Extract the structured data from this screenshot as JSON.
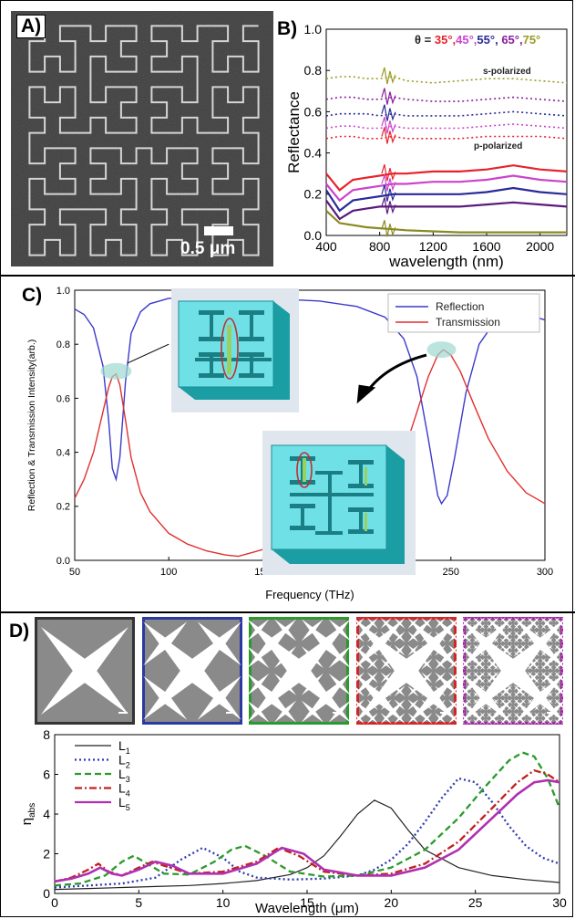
{
  "figure": {
    "panel_a": {
      "label": "A)",
      "scale_bar": "0.5 μm"
    },
    "panel_b": {
      "label": "B)",
      "theta_prefix": "θ =",
      "angles": [
        {
          "text": "35°,",
          "color": "#e8222c"
        },
        {
          "text": "45°,",
          "color": "#cc44cc"
        },
        {
          "text": "55°,",
          "color": "#2a2a99"
        },
        {
          "text": " 65°,",
          "color": "#8a1f9a"
        },
        {
          "text": "75°",
          "color": "#9a9a22"
        }
      ],
      "annotation_s": "s-polarized",
      "annotation_p": "p-polarized"
    },
    "panel_c": {
      "label": "C)"
    },
    "panel_d": {
      "label": "D)",
      "fractal_frame_colors": [
        "#333333",
        "#2a3aa0",
        "#2a9a2a",
        "#d02828",
        "#a028a0"
      ]
    }
  },
  "chart_data": [
    {
      "id": "B",
      "type": "line",
      "title": "",
      "xlabel": "wavelength (nm)",
      "ylabel": "Reflectance",
      "xlim": [
        400,
        2200
      ],
      "ylim": [
        0.0,
        1.0
      ],
      "xticks": [
        "400",
        "800",
        "1200",
        "1600",
        "2000"
      ],
      "xtick_values": [
        400,
        800,
        1200,
        1600,
        2000
      ],
      "yticks": [
        "0.0",
        "0.2",
        "0.4",
        "0.6",
        "0.8",
        "1.0"
      ],
      "ytick_values": [
        0.0,
        0.2,
        0.4,
        0.6,
        0.8,
        1.0
      ],
      "x": [
        400,
        500,
        600,
        700,
        800,
        900,
        1000,
        1200,
        1400,
        1600,
        1800,
        2000,
        2200
      ],
      "series": [
        {
          "polarization": "s",
          "angle": "75",
          "color": "#9a9a22",
          "values": [
            0.76,
            0.77,
            0.77,
            0.76,
            0.76,
            0.77,
            0.75,
            0.74,
            0.75,
            0.76,
            0.76,
            0.75,
            0.74
          ]
        },
        {
          "polarization": "s",
          "angle": "65",
          "color": "#8a1f9a",
          "values": [
            0.66,
            0.67,
            0.67,
            0.66,
            0.66,
            0.67,
            0.66,
            0.65,
            0.65,
            0.66,
            0.67,
            0.66,
            0.65
          ]
        },
        {
          "polarization": "s",
          "angle": "55",
          "color": "#2a2a99",
          "values": [
            0.58,
            0.59,
            0.59,
            0.59,
            0.58,
            0.59,
            0.58,
            0.58,
            0.58,
            0.59,
            0.6,
            0.59,
            0.58
          ]
        },
        {
          "polarization": "s",
          "angle": "45",
          "color": "#cc44cc",
          "values": [
            0.52,
            0.53,
            0.53,
            0.52,
            0.52,
            0.53,
            0.52,
            0.52,
            0.52,
            0.53,
            0.54,
            0.53,
            0.52
          ]
        },
        {
          "polarization": "s",
          "angle": "35",
          "color": "#e8222c",
          "values": [
            0.47,
            0.48,
            0.48,
            0.47,
            0.47,
            0.48,
            0.47,
            0.47,
            0.47,
            0.48,
            0.48,
            0.48,
            0.47
          ]
        },
        {
          "polarization": "p",
          "angle": "35",
          "color": "#e8222c",
          "values": [
            0.3,
            0.22,
            0.27,
            0.28,
            0.29,
            0.3,
            0.3,
            0.31,
            0.31,
            0.32,
            0.34,
            0.32,
            0.31
          ]
        },
        {
          "polarization": "p",
          "angle": "45",
          "color": "#cc44cc",
          "values": [
            0.25,
            0.17,
            0.22,
            0.23,
            0.24,
            0.25,
            0.25,
            0.26,
            0.26,
            0.27,
            0.29,
            0.27,
            0.26
          ]
        },
        {
          "polarization": "p",
          "angle": "55",
          "color": "#2a2a99",
          "values": [
            0.22,
            0.12,
            0.17,
            0.18,
            0.19,
            0.2,
            0.2,
            0.2,
            0.2,
            0.21,
            0.23,
            0.21,
            0.2
          ]
        },
        {
          "polarization": "p",
          "angle": "65",
          "color": "#5a1a7a",
          "values": [
            0.17,
            0.08,
            0.12,
            0.13,
            0.14,
            0.14,
            0.14,
            0.14,
            0.14,
            0.15,
            0.16,
            0.15,
            0.14
          ]
        },
        {
          "polarization": "p",
          "angle": "75",
          "color": "#8a8a22",
          "values": [
            0.12,
            0.06,
            0.05,
            0.04,
            0.035,
            0.03,
            0.025,
            0.02,
            0.015,
            0.015,
            0.015,
            0.015,
            0.015
          ]
        }
      ]
    },
    {
      "id": "C",
      "type": "line",
      "title": "",
      "xlabel": "Frequency (THz)",
      "ylabel": "Reflection & Transmission Intensity(arb.)",
      "xlim": [
        50,
        300
      ],
      "ylim": [
        0.0,
        1.0
      ],
      "xticks": [
        "50",
        "100",
        "150",
        "200",
        "250",
        "300"
      ],
      "xtick_values": [
        50,
        100,
        150,
        200,
        250,
        300
      ],
      "yticks": [
        "0.0",
        "0.2",
        "0.4",
        "0.6",
        "0.8",
        "1.0"
      ],
      "ytick_values": [
        0.0,
        0.2,
        0.4,
        0.6,
        0.8,
        1.0
      ],
      "legend_position": "top-right",
      "series": [
        {
          "name": "Reflection",
          "color": "#3a3acc",
          "x": [
            50,
            55,
            60,
            65,
            68,
            70,
            72,
            74,
            77,
            80,
            85,
            90,
            100,
            120,
            150,
            180,
            200,
            215,
            225,
            232,
            238,
            243,
            245,
            248,
            252,
            258,
            265,
            275,
            285,
            295,
            300
          ],
          "y": [
            0.93,
            0.91,
            0.86,
            0.72,
            0.52,
            0.34,
            0.3,
            0.38,
            0.66,
            0.84,
            0.92,
            0.95,
            0.97,
            0.97,
            0.97,
            0.96,
            0.94,
            0.9,
            0.82,
            0.68,
            0.45,
            0.24,
            0.21,
            0.24,
            0.38,
            0.62,
            0.8,
            0.9,
            0.93,
            0.9,
            0.89
          ]
        },
        {
          "name": "Transmission",
          "color": "#e03030",
          "x": [
            50,
            55,
            60,
            65,
            68,
            70,
            72,
            74,
            77,
            80,
            85,
            90,
            100,
            110,
            120,
            130,
            137,
            145,
            160,
            180,
            200,
            215,
            225,
            232,
            238,
            243,
            246,
            250,
            255,
            262,
            270,
            280,
            290,
            300
          ],
          "y": [
            0.23,
            0.3,
            0.4,
            0.55,
            0.64,
            0.68,
            0.69,
            0.65,
            0.52,
            0.38,
            0.25,
            0.18,
            0.1,
            0.06,
            0.035,
            0.02,
            0.015,
            0.03,
            0.06,
            0.1,
            0.17,
            0.27,
            0.4,
            0.55,
            0.68,
            0.76,
            0.78,
            0.76,
            0.7,
            0.58,
            0.45,
            0.33,
            0.25,
            0.21
          ]
        }
      ]
    },
    {
      "id": "D",
      "type": "line",
      "title": "",
      "xlabel": "Wavelength (μm)",
      "ylabel": "ηabs",
      "xlim": [
        0,
        30
      ],
      "ylim": [
        0,
        8
      ],
      "xticks": [
        "0",
        "5",
        "10",
        "15",
        "20",
        "25",
        "30"
      ],
      "xtick_values": [
        0,
        5,
        10,
        15,
        20,
        25,
        30
      ],
      "yticks": [
        "0",
        "2",
        "4",
        "6",
        "8"
      ],
      "ytick_values": [
        0,
        2,
        4,
        6,
        8
      ],
      "legend_position": "top-left",
      "series": [
        {
          "name": "L1",
          "color": "#222222",
          "dash": "",
          "x": [
            0,
            2,
            4,
            6,
            8,
            10,
            12,
            14,
            15,
            16,
            17,
            18,
            19,
            20,
            21,
            22,
            24,
            26,
            28,
            30
          ],
          "y": [
            0.2,
            0.25,
            0.3,
            0.35,
            0.4,
            0.5,
            0.65,
            0.95,
            1.3,
            1.9,
            2.9,
            4.0,
            4.7,
            4.3,
            3.2,
            2.2,
            1.3,
            0.9,
            0.7,
            0.55
          ]
        },
        {
          "name": "L2",
          "color": "#2a3ab0",
          "dash": "2,3",
          "x": [
            0,
            2,
            4,
            6,
            7.5,
            8.8,
            10,
            11,
            12,
            14,
            16,
            18,
            19,
            20,
            21,
            22,
            23,
            24,
            25,
            26,
            27,
            28,
            29,
            30
          ],
          "y": [
            0.3,
            0.4,
            0.5,
            0.8,
            1.7,
            2.3,
            1.8,
            1.1,
            0.8,
            0.7,
            0.75,
            0.9,
            1.2,
            1.7,
            2.5,
            3.6,
            4.8,
            5.8,
            5.6,
            4.6,
            3.4,
            2.4,
            1.8,
            1.5
          ]
        },
        {
          "name": "L3",
          "color": "#2a9a2a",
          "dash": "7,4",
          "x": [
            0,
            1.5,
            3,
            4,
            4.7,
            5.5,
            6.5,
            8,
            9.5,
            10.5,
            11.3,
            12.5,
            14,
            16,
            18,
            20,
            22,
            24,
            25.5,
            27,
            27.8,
            28.5,
            29.3,
            30
          ],
          "y": [
            0.4,
            0.5,
            0.9,
            1.6,
            1.9,
            1.5,
            1.0,
            0.95,
            1.6,
            2.2,
            2.4,
            1.9,
            1.1,
            0.85,
            0.9,
            1.3,
            2.2,
            3.8,
            5.3,
            6.7,
            7.1,
            6.9,
            5.8,
            4.3
          ]
        },
        {
          "name": "L4",
          "color": "#c02020",
          "dash": "8,3,2,3",
          "x": [
            0,
            1,
            2,
            2.6,
            3.2,
            4,
            5,
            5.8,
            6.5,
            8,
            10,
            12,
            13.3,
            14.5,
            16,
            18,
            20,
            22,
            24,
            26,
            27.5,
            28.5,
            29.3,
            30
          ],
          "y": [
            0.6,
            0.8,
            1.2,
            1.5,
            1.1,
            0.9,
            1.3,
            1.6,
            1.4,
            1.0,
            1.1,
            1.6,
            2.3,
            1.9,
            1.1,
            0.9,
            1.0,
            1.5,
            2.6,
            4.3,
            5.6,
            6.2,
            6.0,
            5.6
          ]
        },
        {
          "name": "L5",
          "color": "#b030b0",
          "dash": "",
          "x": [
            0,
            1,
            2,
            2.7,
            3.4,
            4,
            5,
            6,
            7,
            8,
            10,
            12,
            13.5,
            14.8,
            16,
            18,
            20,
            22,
            24,
            26,
            27.5,
            28.5,
            29.3,
            30
          ],
          "y": [
            0.6,
            0.75,
            1.0,
            1.3,
            1.0,
            0.9,
            1.2,
            1.6,
            1.4,
            1.0,
            1.0,
            1.5,
            2.3,
            2.0,
            1.2,
            0.9,
            0.9,
            1.3,
            2.2,
            3.8,
            5.0,
            5.6,
            5.7,
            5.6
          ]
        }
      ]
    }
  ]
}
